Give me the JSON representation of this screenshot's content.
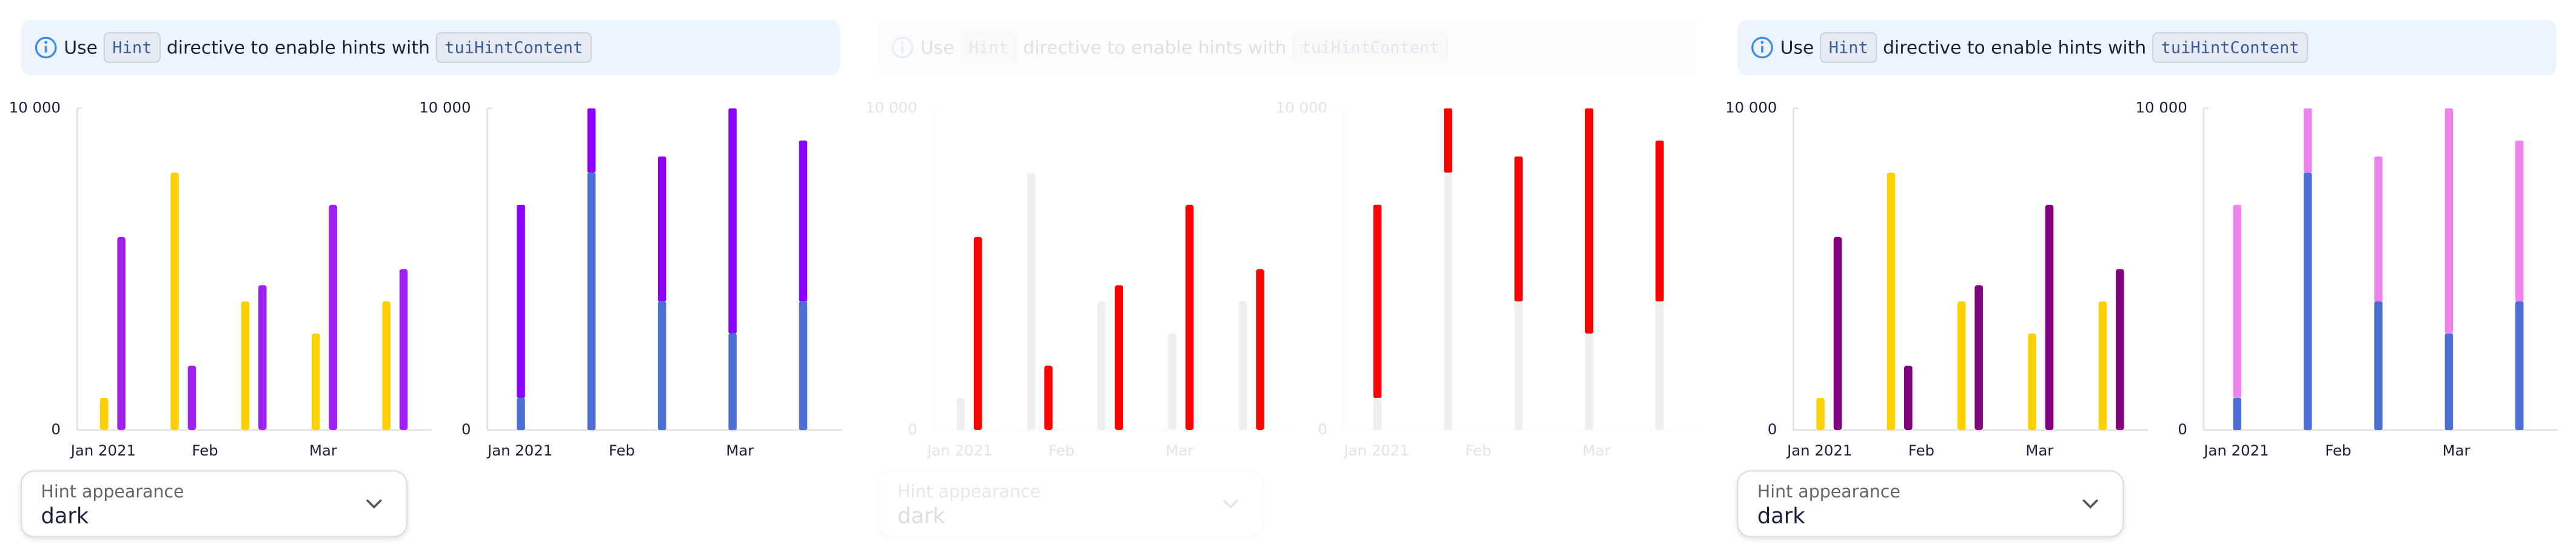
{
  "panels": [
    {
      "disabled": false,
      "notice": {
        "prefix": "Use",
        "code1": "Hint",
        "middle": "directive to enable hints with",
        "code2": "tuiHintContent"
      },
      "charts": [
        {
          "type": "bar",
          "ylim": [
            0,
            10000
          ],
          "yticks": [
            0,
            {
              "value": 10000,
              "label": "10 000"
            }
          ],
          "x_labels": [
            "Jan 2021",
            "Feb",
            "Mar"
          ],
          "series": [
            {
              "color": "#ffd000",
              "values": [
                1000,
                8000,
                4000,
                3000,
                4000
              ]
            },
            {
              "color": "#a020f0",
              "values": [
                6000,
                2000,
                4500,
                7000,
                5000
              ]
            }
          ]
        },
        {
          "type": "stacked_bar",
          "ylim": [
            0,
            10000
          ],
          "yticks": [
            0,
            {
              "value": 10000,
              "label": "10 000"
            }
          ],
          "x_labels": [
            "Jan 2021",
            "Feb",
            "Mar"
          ],
          "series": [
            {
              "color": "#4c6fd5",
              "values": [
                1000,
                8000,
                4000,
                3000,
                4000
              ]
            },
            {
              "color": "#8b00ff",
              "values": [
                6000,
                2000,
                4500,
                7000,
                5000
              ]
            }
          ]
        }
      ],
      "select": {
        "label": "Hint appearance",
        "value": "dark"
      }
    },
    {
      "disabled": true,
      "notice": {
        "prefix": "Use",
        "code1": "Hint",
        "middle": "directive to enable hints with",
        "code2": "tuiHintContent"
      },
      "charts": [
        {
          "type": "bar",
          "ylim": [
            0,
            10000
          ],
          "yticks": [
            0,
            {
              "value": 10000,
              "label": "10 000"
            }
          ],
          "x_labels": [
            "Jan 2021",
            "Feb",
            "Mar"
          ],
          "series": [
            {
              "color": "#efefef",
              "values": [
                1000,
                8000,
                4000,
                3000,
                4000
              ]
            },
            {
              "color": "#ff0000",
              "values": [
                6000,
                2000,
                4500,
                7000,
                5000
              ]
            }
          ]
        },
        {
          "type": "stacked_bar",
          "ylim": [
            0,
            10000
          ],
          "yticks": [
            0,
            {
              "value": 10000,
              "label": "10 000"
            }
          ],
          "x_labels": [
            "Jan 2021",
            "Feb",
            "Mar"
          ],
          "series": [
            {
              "color": "#efefef",
              "values": [
                1000,
                8000,
                4000,
                3000,
                4000
              ]
            },
            {
              "color": "#ff0000",
              "values": [
                6000,
                2000,
                4500,
                7000,
                5000
              ]
            }
          ]
        }
      ],
      "select": {
        "label": "Hint appearance",
        "value": "dark"
      }
    },
    {
      "disabled": false,
      "notice": {
        "prefix": "Use",
        "code1": "Hint",
        "middle": "directive to enable hints with",
        "code2": "tuiHintContent"
      },
      "charts": [
        {
          "type": "bar",
          "ylim": [
            0,
            10000
          ],
          "yticks": [
            0,
            {
              "value": 10000,
              "label": "10 000"
            }
          ],
          "x_labels": [
            "Jan 2021",
            "Feb",
            "Mar"
          ],
          "series": [
            {
              "color": "#ffd000",
              "values": [
                1000,
                8000,
                4000,
                3000,
                4000
              ]
            },
            {
              "color": "#800080",
              "values": [
                6000,
                2000,
                4500,
                7000,
                5000
              ]
            }
          ]
        },
        {
          "type": "stacked_bar",
          "ylim": [
            0,
            10000
          ],
          "yticks": [
            0,
            {
              "value": 10000,
              "label": "10 000"
            }
          ],
          "x_labels": [
            "Jan 2021",
            "Feb",
            "Mar"
          ],
          "series": [
            {
              "color": "#4c6fd5",
              "values": [
                1000,
                8000,
                4000,
                3000,
                4000
              ]
            },
            {
              "color": "#ee82ee",
              "values": [
                6000,
                2000,
                4500,
                7000,
                5000
              ]
            }
          ]
        }
      ],
      "select": {
        "label": "Hint appearance",
        "value": "dark"
      }
    }
  ]
}
